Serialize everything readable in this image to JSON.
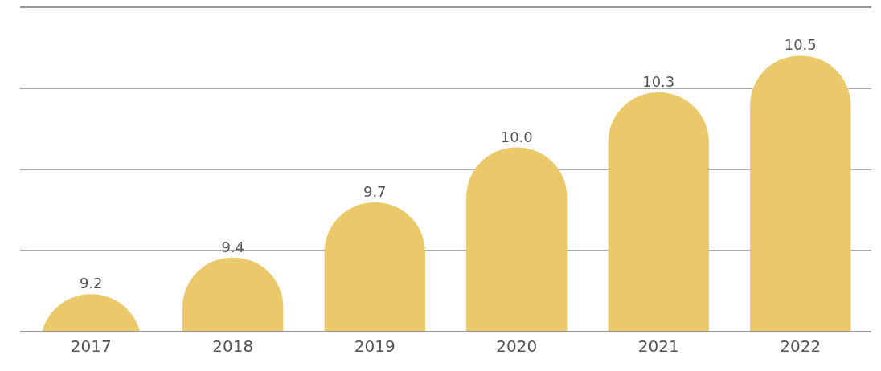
{
  "chart_data": {
    "type": "bar",
    "categories": [
      "2017",
      "2018",
      "2019",
      "2020",
      "2021",
      "2022"
    ],
    "values": [
      9.2,
      9.4,
      9.7,
      10.0,
      10.3,
      10.5
    ],
    "color": "#ebc96a",
    "value_labels": [
      "9.2",
      "9.4",
      "9.7",
      "10.0",
      "10.3",
      "10.5"
    ],
    "ylim": [
      9.0,
      10.76
    ],
    "yticks": [
      {
        "value": 9.0,
        "label": null
      },
      {
        "value": 9.44,
        "label": null
      },
      {
        "value": 9.88,
        "label": null
      },
      {
        "value": 10.32,
        "label": null
      },
      {
        "value": 10.76,
        "label": null
      }
    ],
    "grid": "y",
    "tick_labels": "x",
    "legend": false
  }
}
